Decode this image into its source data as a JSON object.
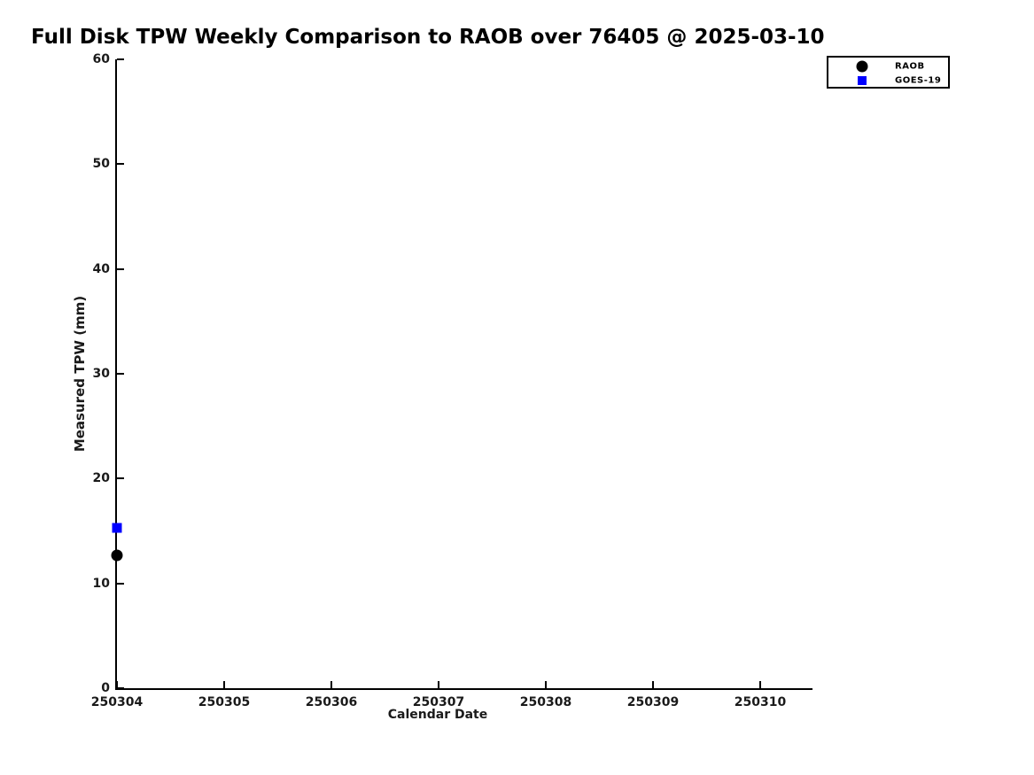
{
  "figure": {
    "background": "#ffffff",
    "axis_color": "#000000",
    "tick_label_color": "#1a1a1a"
  },
  "chart_data": {
    "type": "scatter",
    "title": "Full Disk TPW Weekly Comparison to RAOB over 76405 @ 2025-03-10",
    "xlabel": "Calendar Date",
    "ylabel": "Measured TPW (mm)",
    "x_ticks": [
      250304,
      250305,
      250306,
      250307,
      250308,
      250309,
      250310
    ],
    "y_ticks": [
      0,
      10,
      20,
      30,
      40,
      50,
      60
    ],
    "xlim": [
      250304,
      250310.5
    ],
    "ylim": [
      0,
      60
    ],
    "grid": false,
    "legend_position": "top-right",
    "series": [
      {
        "name": "RAOB",
        "marker": "circle",
        "color": "#000000",
        "points": [
          {
            "x": 250304,
            "y": 12.7
          }
        ]
      },
      {
        "name": "GOES-19",
        "marker": "square",
        "color": "#0000ff",
        "points": [
          {
            "x": 250304,
            "y": 15.3
          }
        ]
      }
    ]
  }
}
